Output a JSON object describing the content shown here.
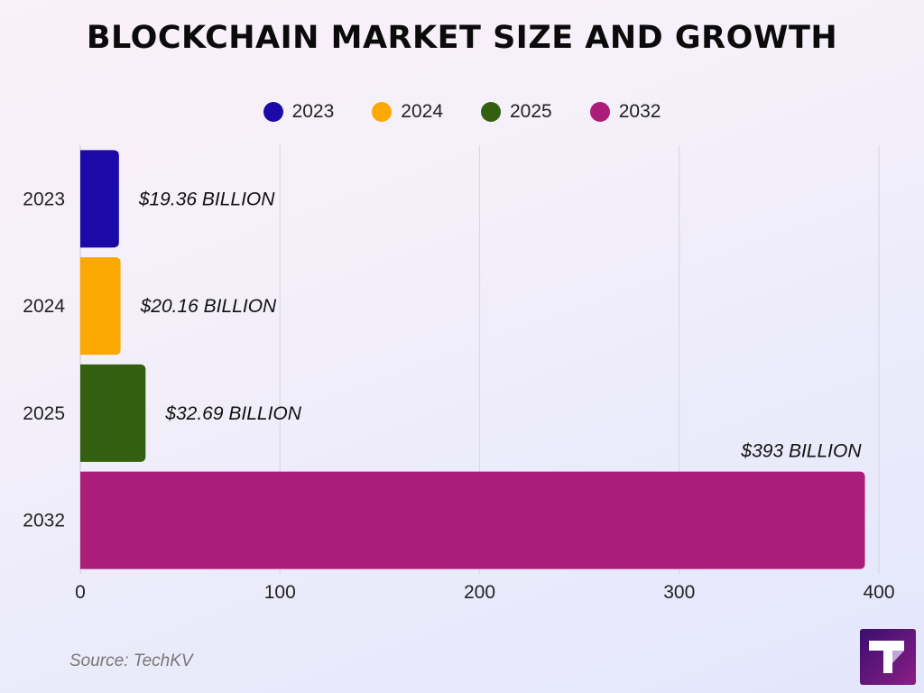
{
  "title": "BLOCKCHAIN MARKET SIZE AND GROWTH",
  "source": "Source: TechKV",
  "logo_letter": "T",
  "chart_data": {
    "type": "bar",
    "orientation": "horizontal",
    "title": "BLOCKCHAIN MARKET SIZE AND GROWTH",
    "categories": [
      "2023",
      "2024",
      "2025",
      "2032"
    ],
    "values": [
      19.36,
      20.16,
      32.69,
      393
    ],
    "data_labels": [
      "$19.36 BILLION",
      "$20.16 BILLION",
      "$32.69 BILLION",
      "$393 BILLION"
    ],
    "colors": [
      "#1b0aa8",
      "#fba800",
      "#335f10",
      "#ab1d79"
    ],
    "xlabel": "",
    "ylabel": "",
    "xlim": [
      0,
      400
    ],
    "xticks": [
      0,
      100,
      200,
      300,
      400
    ],
    "grid": true,
    "legend": {
      "position": "top",
      "entries": [
        "2023",
        "2024",
        "2025",
        "2032"
      ]
    }
  }
}
